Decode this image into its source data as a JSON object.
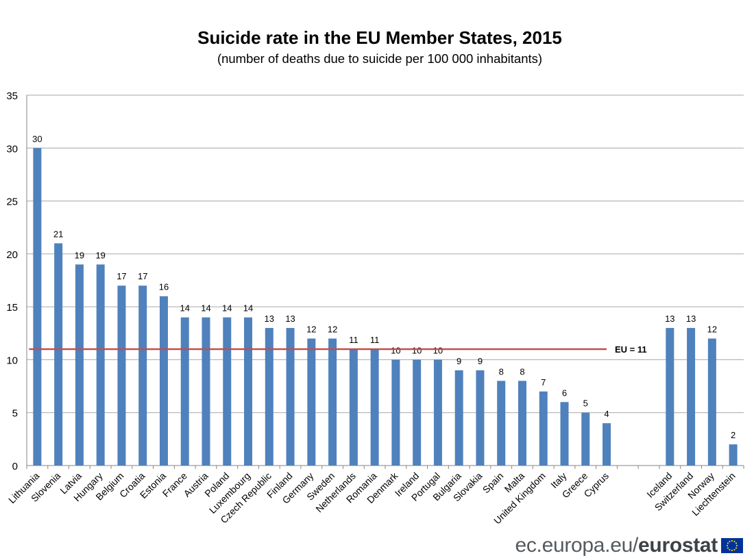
{
  "chart_data": {
    "type": "bar",
    "title": "Suicide rate in the EU Member States,  2015",
    "subtitle": "(number of deaths due to suicide per 100 000 inhabitants)",
    "xlabel": "",
    "ylabel": "",
    "ylim": [
      0,
      35
    ],
    "y_ticks": [
      0,
      5,
      10,
      15,
      20,
      25,
      30,
      35
    ],
    "grid": true,
    "bar_color": "#4f81bd",
    "reference_line": {
      "label": "EU = 11",
      "value": 11,
      "color": "#c0504d"
    },
    "groups": [
      {
        "categories": [
          "Lithuania",
          "Slovenia",
          "Latvia",
          "Hungary",
          "Belgium",
          "Croatia",
          "Estonia",
          "France",
          "Austria",
          "Poland",
          "Luxembourg",
          "Czech Republic",
          "Finland",
          "Germany",
          "Sweden",
          "Netherlands",
          "Romania",
          "Denmark",
          "Ireland",
          "Portugal",
          "Bulgaria",
          "Slovakia",
          "Spain",
          "Malta",
          "United Kingdom",
          "Italy",
          "Greece",
          "Cyprus"
        ],
        "values": [
          30,
          21,
          19,
          19,
          17,
          17,
          16,
          14,
          14,
          14,
          14,
          13,
          13,
          12,
          12,
          11,
          11,
          10,
          10,
          10,
          9,
          9,
          8,
          8,
          7,
          6,
          5,
          4
        ]
      },
      {
        "categories": [
          "Iceland",
          "Switzerland",
          "Norway",
          "Liechtenstein"
        ],
        "values": [
          13,
          13,
          12,
          2
        ]
      }
    ]
  },
  "branding": {
    "domain_text": "ec.europa.eu/",
    "name_text": "eurostat"
  }
}
